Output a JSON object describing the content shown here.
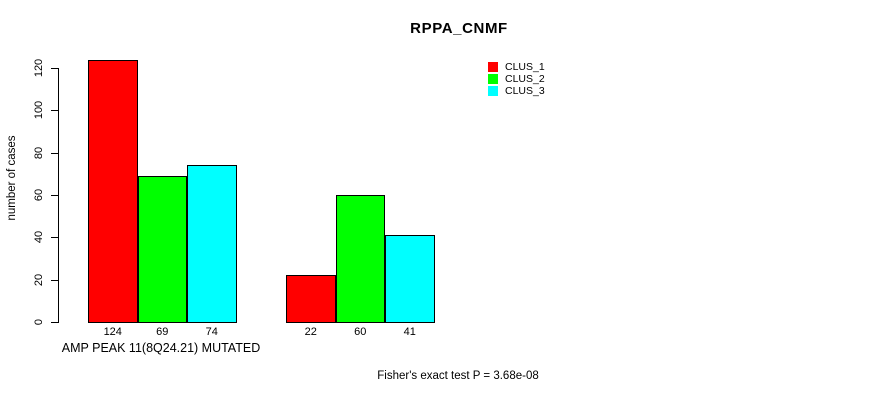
{
  "chart_data": {
    "type": "bar",
    "title": "RPPA_CNMF",
    "ylabel": "number of cases",
    "xlabel": "AMP PEAK 11(8Q24.21) MUTATED",
    "ylim": [
      0,
      120
    ],
    "yticks": [
      0,
      20,
      40,
      60,
      80,
      100,
      120
    ],
    "groups": 2,
    "series": [
      {
        "name": "CLUS_1",
        "color": "#ff0000",
        "values": [
          124,
          22
        ]
      },
      {
        "name": "CLUS_2",
        "color": "#00ff00",
        "values": [
          69,
          60
        ]
      },
      {
        "name": "CLUS_3",
        "color": "#00ffff",
        "values": [
          74,
          41
        ]
      }
    ],
    "bar_value_labels": [
      [
        124,
        69,
        74
      ],
      [
        22,
        60,
        41
      ]
    ],
    "legend_position": "top-right",
    "grid": false
  },
  "annotations": {
    "footer": "Fisher's exact test P = 3.68e-08"
  }
}
